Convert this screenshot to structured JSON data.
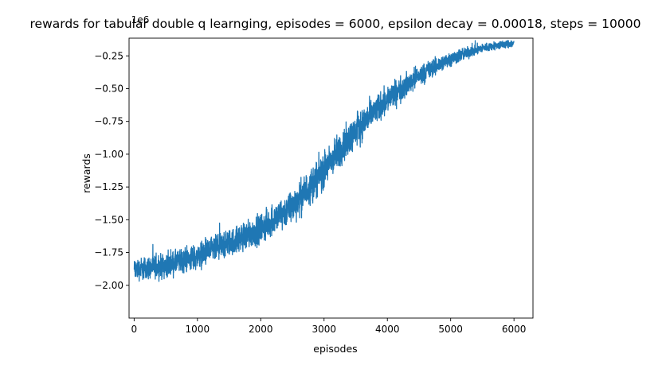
{
  "chart_data": {
    "type": "line",
    "title": "rewards for tabular double q learnging, episodes = 6000, epsilon decay = 0.00018, steps = 10000",
    "xlabel": "episodes",
    "ylabel": "rewards",
    "y_offset_label": "1e6",
    "xlim": [
      -80,
      6300
    ],
    "ylim": [
      -2.25,
      -0.115
    ],
    "xticks": [
      0,
      1000,
      2000,
      3000,
      4000,
      5000,
      6000
    ],
    "xtick_labels": [
      "0",
      "1000",
      "2000",
      "3000",
      "4000",
      "5000",
      "6000"
    ],
    "yticks": [
      -2.0,
      -1.75,
      -1.5,
      -1.25,
      -1.0,
      -0.75,
      -0.5,
      -0.25
    ],
    "ytick_labels": [
      "−2.00",
      "−1.75",
      "−1.50",
      "−1.25",
      "−1.00",
      "−0.75",
      "−0.50",
      "−0.25"
    ],
    "grid": false,
    "legend": "none",
    "series": [
      {
        "color": "#1f77b4",
        "episodes": 6000,
        "trend": {
          "x": [
            0,
            500,
            1000,
            1500,
            2000,
            2500,
            3000,
            3500,
            4000,
            4500,
            5000,
            5500,
            6000
          ],
          "y": [
            -1.88,
            -1.85,
            -1.78,
            -1.68,
            -1.57,
            -1.4,
            -1.12,
            -0.82,
            -0.58,
            -0.4,
            -0.27,
            -0.19,
            -0.15
          ]
        },
        "noise_band": {
          "x": [
            0,
            1000,
            2000,
            2500,
            3000,
            3500,
            4000,
            4500,
            5000,
            5500,
            6000
          ],
          "half_width": [
            0.12,
            0.14,
            0.16,
            0.18,
            0.2,
            0.18,
            0.15,
            0.11,
            0.08,
            0.05,
            0.04
          ]
        },
        "upper_envelope_cap": -0.13
      }
    ]
  }
}
